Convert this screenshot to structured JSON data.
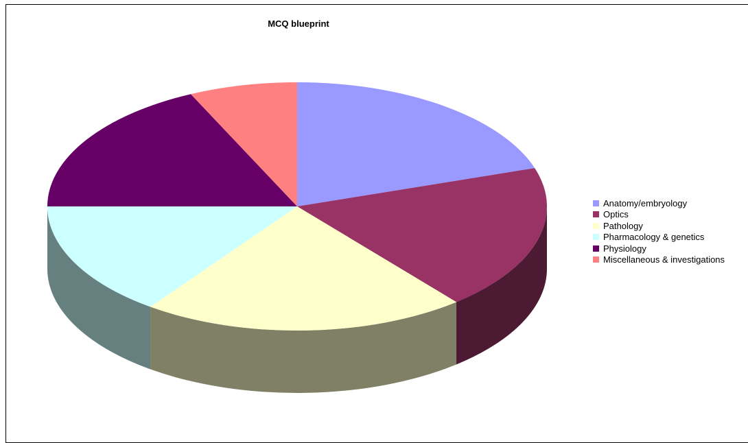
{
  "chart_data": {
    "type": "pie",
    "title": "MCQ blueprint",
    "categories": [
      "Anatomy/embryology",
      "Optics",
      "Pathology",
      "Pharmacology & genetics",
      "Physiology",
      "Miscellaneous & investigations"
    ],
    "values": [
      20,
      19,
      21,
      15,
      18,
      7
    ],
    "colors": [
      "#9999ff",
      "#993366",
      "#ffffcc",
      "#ccffff",
      "#660066",
      "#ff8080"
    ],
    "side_colors": [
      "#5c5c99",
      "#4d1a33",
      "#808066",
      "#668080",
      "#330033",
      "#804040"
    ],
    "three_d": true,
    "legend_position": "right"
  }
}
